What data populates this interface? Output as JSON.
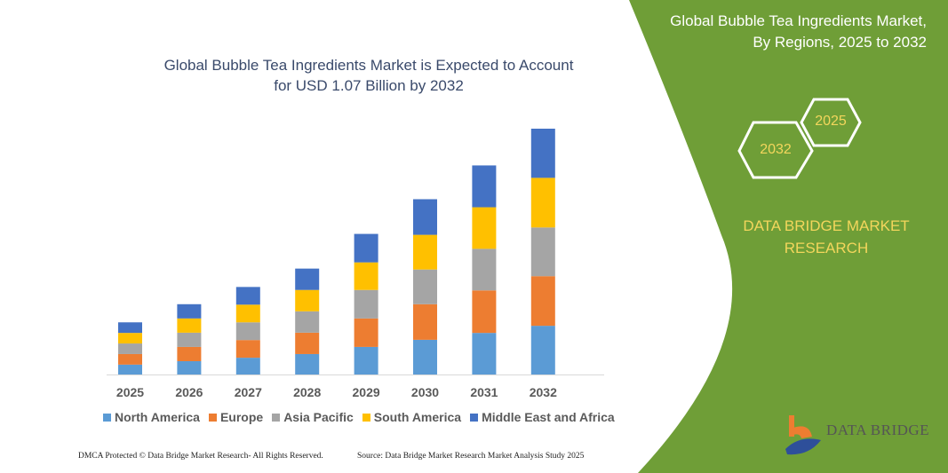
{
  "panel": {
    "title_line1": "Global Bubble Tea Ingredients Market,",
    "title_line2": "By Regions, 2025 to 2032",
    "hex_start": "2025",
    "hex_end": "2032",
    "brand_line1": "DATA BRIDGE MARKET",
    "brand_line2": "RESEARCH",
    "logo_text": "DATA BRIDGE",
    "colors": {
      "panel_green": "#6f9e37",
      "brand_yellow": "#f3d65c"
    }
  },
  "footer": {
    "left": "DMCA Protected © Data Bridge Market Research-  All Rights Reserved.",
    "right": "Source: Data Bridge Market Research  Market Analysis Study 2025"
  },
  "chart_data": {
    "type": "bar",
    "stacked": true,
    "title_line1": "Global Bubble Tea Ingredients Market is Expected to Account",
    "title_line2": "for USD 1.07 Billion by 2032",
    "categories": [
      "2025",
      "2026",
      "2027",
      "2028",
      "2029",
      "2030",
      "2031",
      "2032"
    ],
    "legend_position": "bottom",
    "grid": false,
    "series": [
      {
        "name": "North America",
        "color": "#5b9bd5",
        "values": [
          0.043,
          0.058,
          0.073,
          0.089,
          0.12,
          0.151,
          0.181,
          0.212
        ]
      },
      {
        "name": "Europe",
        "color": "#ed7d31",
        "values": [
          0.046,
          0.062,
          0.077,
          0.093,
          0.124,
          0.155,
          0.185,
          0.216
        ]
      },
      {
        "name": "Asia Pacific",
        "color": "#a5a5a5",
        "values": [
          0.046,
          0.062,
          0.077,
          0.093,
          0.124,
          0.151,
          0.181,
          0.212
        ]
      },
      {
        "name": "South America",
        "color": "#ffc000",
        "values": [
          0.046,
          0.062,
          0.077,
          0.093,
          0.12,
          0.151,
          0.181,
          0.216
        ]
      },
      {
        "name": "Middle East and Africa",
        "color": "#4472c4",
        "values": [
          0.046,
          0.062,
          0.077,
          0.093,
          0.124,
          0.155,
          0.182,
          0.214
        ]
      }
    ]
  }
}
